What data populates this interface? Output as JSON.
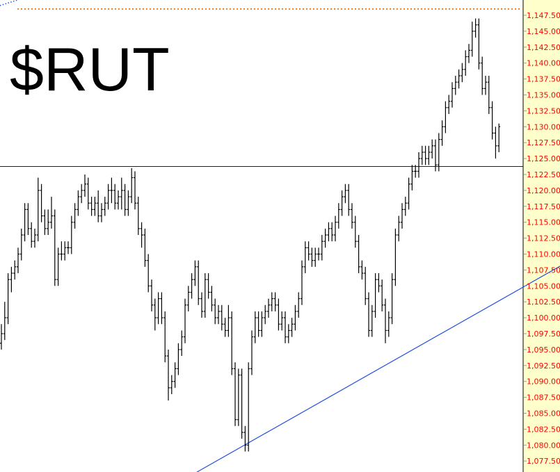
{
  "chart_data": {
    "type": "ohlc",
    "title": "$RUT",
    "xlabel": "",
    "ylabel": "",
    "ylim": [
      1076.5,
      1149.5
    ],
    "grid": false,
    "y_ticks": [
      "1,147.50",
      "1,145.00",
      "1,142.50",
      "1,140.00",
      "1,137.50",
      "1,135.00",
      "1,132.50",
      "1,130.00",
      "1,127.50",
      "1,125.00",
      "1,122.50",
      "1,120.00",
      "1,117.50",
      "1,115.00",
      "1,112.50",
      "1,110.00",
      "1,107.50",
      "1,105.00",
      "1,102.50",
      "1,100.00",
      "1,097.50",
      "1,095.00",
      "1,092.50",
      "1,090.00",
      "1,087.50",
      "1,085.00",
      "1,082.50",
      "1,080.00",
      "1,077.50"
    ],
    "colors": {
      "bars": "#000000",
      "axis_labels": "#ff0000",
      "axis_background": "#ffffcc",
      "trendline": "#1f4fe0",
      "horizontal_line": "#000000",
      "top_dotted_line": "#f07d1a"
    },
    "horizontal_line": 1123.75,
    "top_dotted_line": 1148.5,
    "trendline": [
      [
        58.5,
        1075.75
      ],
      [
        187.5,
        1114.1
      ]
    ],
    "bars_format": [
      "open",
      "high",
      "low",
      "close"
    ],
    "bars": [
      [
        1096,
        1099,
        1095,
        1097.5
      ],
      [
        1097.5,
        1102.5,
        1096.5,
        1100
      ],
      [
        1100,
        1107,
        1099,
        1106
      ],
      [
        1106,
        1108,
        1104,
        1107
      ],
      [
        1107,
        1109,
        1106,
        1108
      ],
      [
        1108,
        1111,
        1107,
        1110
      ],
      [
        1110,
        1114,
        1109,
        1113
      ],
      [
        1113,
        1118,
        1112,
        1117
      ],
      [
        1117,
        1118,
        1113,
        1114
      ],
      [
        1114,
        1115,
        1111,
        1112
      ],
      [
        1112,
        1114,
        1111,
        1113
      ],
      [
        1113,
        1122,
        1112,
        1120
      ],
      [
        1120,
        1121,
        1115,
        1116
      ],
      [
        1116,
        1117,
        1113,
        1114
      ],
      [
        1114,
        1117,
        1113,
        1115
      ],
      [
        1115,
        1119,
        1114,
        1116
      ],
      [
        1116,
        1117,
        1105,
        1106
      ],
      [
        1106,
        1111,
        1105,
        1110
      ],
      [
        1110,
        1112,
        1109,
        1110
      ],
      [
        1110,
        1112,
        1109,
        1111
      ],
      [
        1111,
        1112,
        1110,
        1111
      ],
      [
        1111,
        1116,
        1110,
        1115
      ],
      [
        1115,
        1118,
        1114,
        1117
      ],
      [
        1117,
        1120,
        1116,
        1119
      ],
      [
        1119,
        1121,
        1118,
        1120
      ],
      [
        1120,
        1122.5,
        1119,
        1121
      ],
      [
        1121,
        1122,
        1117,
        1118
      ],
      [
        1118,
        1119,
        1116,
        1117
      ],
      [
        1117,
        1119,
        1116,
        1118
      ],
      [
        1118,
        1120,
        1115,
        1116
      ],
      [
        1116,
        1118,
        1115,
        1117
      ],
      [
        1117,
        1119,
        1116,
        1118
      ],
      [
        1118,
        1121,
        1117,
        1120
      ],
      [
        1120,
        1122,
        1118,
        1120
      ],
      [
        1120,
        1121,
        1117,
        1118
      ],
      [
        1118,
        1120,
        1117,
        1119
      ],
      [
        1119,
        1122,
        1117,
        1120
      ],
      [
        1120,
        1121,
        1116,
        1117
      ],
      [
        1117,
        1120,
        1116,
        1119
      ],
      [
        1119,
        1123.5,
        1118,
        1122
      ],
      [
        1122,
        1123,
        1117,
        1118
      ],
      [
        1118,
        1119,
        1113,
        1114
      ],
      [
        1114,
        1115,
        1111,
        1113
      ],
      [
        1113,
        1114,
        1108,
        1109
      ],
      [
        1109,
        1110,
        1104,
        1105
      ],
      [
        1105,
        1106,
        1101,
        1102
      ],
      [
        1102,
        1103,
        1098,
        1100
      ],
      [
        1100,
        1104,
        1099,
        1103
      ],
      [
        1103,
        1104,
        1099,
        1100
      ],
      [
        1100,
        1101,
        1093,
        1094
      ],
      [
        1094,
        1095,
        1087,
        1089
      ],
      [
        1089,
        1091,
        1088,
        1090
      ],
      [
        1090,
        1093,
        1089,
        1092
      ],
      [
        1092,
        1096,
        1091,
        1095
      ],
      [
        1095,
        1098,
        1094,
        1097
      ],
      [
        1097,
        1103,
        1096,
        1102
      ],
      [
        1102,
        1105,
        1101,
        1104
      ],
      [
        1104,
        1107,
        1103,
        1106
      ],
      [
        1106,
        1109,
        1105,
        1108
      ],
      [
        1108,
        1109,
        1102,
        1103
      ],
      [
        1103,
        1104,
        1100,
        1101
      ],
      [
        1101,
        1107,
        1100,
        1106
      ],
      [
        1106,
        1107,
        1103,
        1104
      ],
      [
        1104,
        1105,
        1101,
        1102
      ],
      [
        1102,
        1103,
        1099,
        1100
      ],
      [
        1100,
        1102,
        1099,
        1101
      ],
      [
        1101,
        1102,
        1098,
        1099
      ],
      [
        1099,
        1100,
        1097,
        1098
      ],
      [
        1098,
        1102,
        1097,
        1100
      ],
      [
        1100,
        1101,
        1091,
        1092
      ],
      [
        1092,
        1093,
        1083,
        1084
      ],
      [
        1084,
        1092,
        1083,
        1091
      ],
      [
        1091,
        1092,
        1081,
        1082
      ],
      [
        1082,
        1083,
        1079,
        1080
      ],
      [
        1080,
        1093,
        1079,
        1092
      ],
      [
        1092,
        1098,
        1091,
        1097
      ],
      [
        1097,
        1101,
        1096,
        1100
      ],
      [
        1100,
        1101,
        1097,
        1098
      ],
      [
        1098,
        1101,
        1097,
        1100
      ],
      [
        1100,
        1102,
        1099,
        1101
      ],
      [
        1101,
        1103,
        1100,
        1102
      ],
      [
        1102,
        1104,
        1101,
        1103
      ],
      [
        1103,
        1104,
        1101,
        1102
      ],
      [
        1102,
        1103,
        1098,
        1099
      ],
      [
        1099,
        1101,
        1098,
        1100
      ],
      [
        1100,
        1101,
        1096,
        1097
      ],
      [
        1097,
        1099,
        1096,
        1098
      ],
      [
        1098,
        1100,
        1097,
        1099
      ],
      [
        1099,
        1102,
        1098,
        1101
      ],
      [
        1101,
        1104,
        1100,
        1103
      ],
      [
        1103,
        1109,
        1102,
        1108
      ],
      [
        1108,
        1112,
        1107,
        1111
      ],
      [
        1111,
        1112,
        1109,
        1110
      ],
      [
        1110,
        1111,
        1108,
        1109
      ],
      [
        1109,
        1111,
        1108,
        1110
      ],
      [
        1110,
        1111,
        1109,
        1110
      ],
      [
        1110,
        1113,
        1109,
        1112
      ],
      [
        1112,
        1114,
        1111,
        1113
      ],
      [
        1113,
        1115,
        1112,
        1114
      ],
      [
        1114,
        1115,
        1112,
        1113
      ],
      [
        1113,
        1116,
        1112,
        1115
      ],
      [
        1115,
        1118,
        1114,
        1117
      ],
      [
        1117,
        1120,
        1116,
        1119
      ],
      [
        1119,
        1121,
        1118,
        1120
      ],
      [
        1120,
        1121,
        1116,
        1117
      ],
      [
        1117,
        1118,
        1114,
        1115
      ],
      [
        1115,
        1116,
        1111,
        1112
      ],
      [
        1112,
        1113,
        1107,
        1108
      ],
      [
        1108,
        1109,
        1106,
        1107
      ],
      [
        1107,
        1108,
        1102,
        1103
      ],
      [
        1103,
        1104,
        1097,
        1098
      ],
      [
        1098,
        1102,
        1097,
        1101
      ],
      [
        1101,
        1107,
        1100,
        1106
      ],
      [
        1106,
        1107,
        1104,
        1105
      ],
      [
        1105,
        1106,
        1101,
        1102
      ],
      [
        1102,
        1103,
        1096,
        1098
      ],
      [
        1098,
        1101,
        1097,
        1100
      ],
      [
        1100,
        1107,
        1099,
        1106
      ],
      [
        1106,
        1114,
        1105,
        1113
      ],
      [
        1113,
        1116,
        1112,
        1115
      ],
      [
        1115,
        1118,
        1114,
        1117
      ],
      [
        1117,
        1119,
        1116,
        1118
      ],
      [
        1118,
        1122,
        1117,
        1121
      ],
      [
        1121,
        1124,
        1120,
        1123
      ],
      [
        1123,
        1124,
        1122,
        1123
      ],
      [
        1123,
        1126,
        1122,
        1125
      ],
      [
        1125,
        1127,
        1124,
        1126
      ],
      [
        1126,
        1127,
        1124,
        1125
      ],
      [
        1125,
        1127,
        1124,
        1126
      ],
      [
        1126,
        1128,
        1125,
        1127
      ],
      [
        1127,
        1128,
        1123,
        1124
      ],
      [
        1124,
        1129,
        1123,
        1128
      ],
      [
        1128,
        1131,
        1127,
        1130
      ],
      [
        1130,
        1134,
        1129,
        1133
      ],
      [
        1133,
        1135,
        1132,
        1134
      ],
      [
        1134,
        1137,
        1133,
        1136
      ],
      [
        1136,
        1138,
        1135,
        1137
      ],
      [
        1137,
        1139,
        1136,
        1138
      ],
      [
        1138,
        1140,
        1137,
        1139
      ],
      [
        1139,
        1142,
        1138,
        1141
      ],
      [
        1141,
        1143,
        1140,
        1142
      ],
      [
        1142,
        1146.5,
        1141,
        1145
      ],
      [
        1145,
        1147,
        1144,
        1146
      ],
      [
        1146,
        1147,
        1139,
        1140
      ],
      [
        1140,
        1141,
        1135,
        1136
      ],
      [
        1136,
        1138,
        1135,
        1137
      ],
      [
        1137,
        1138,
        1132,
        1133
      ],
      [
        1133,
        1134,
        1128,
        1129
      ],
      [
        1129,
        1130,
        1125,
        1127
      ],
      [
        1127,
        1130.5,
        1126,
        1130
      ]
    ]
  }
}
